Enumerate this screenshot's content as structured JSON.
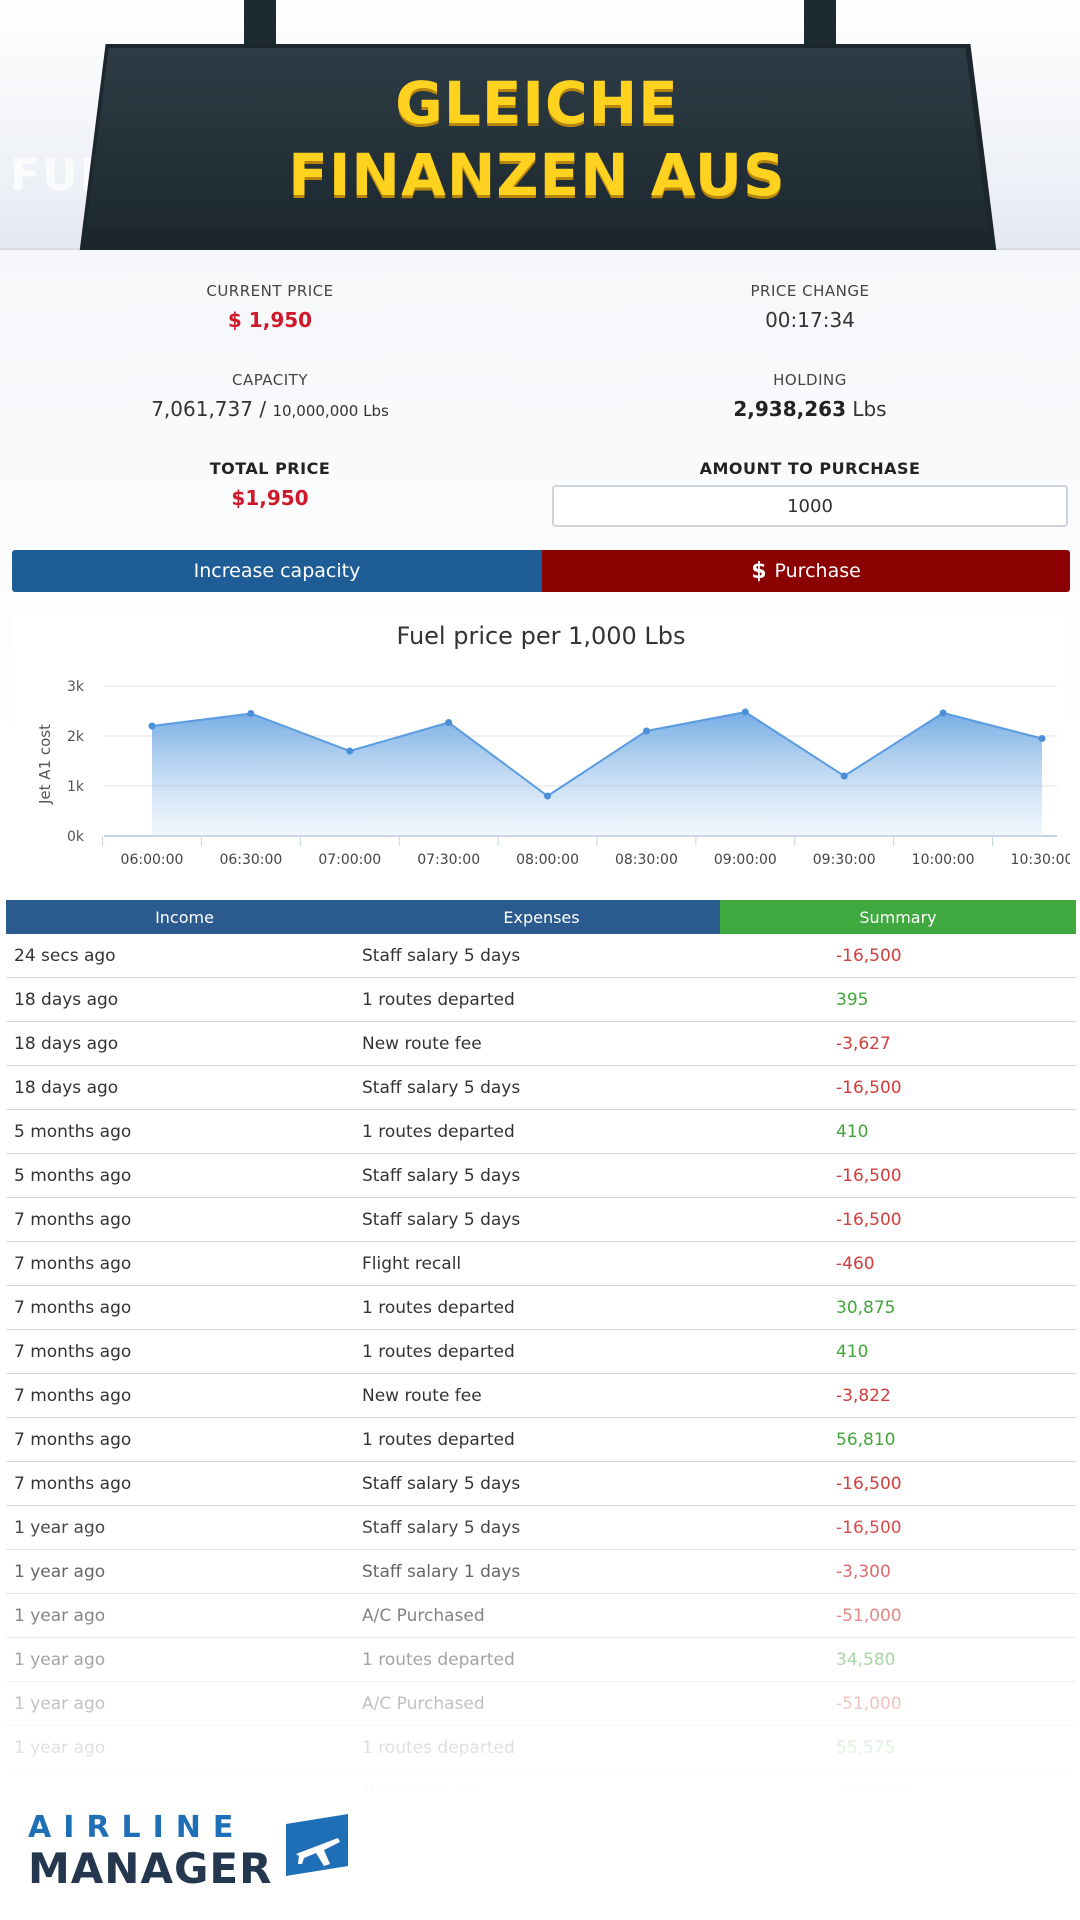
{
  "banner": {
    "line1": "GLEICHE",
    "line2": "FINANZEN AUS",
    "faded_title": "FUE"
  },
  "stats": {
    "current_price_label": "CURRENT PRICE",
    "current_price_value": "$ 1,950",
    "price_change_label": "PRICE CHANGE",
    "price_change_value": "00:17:34",
    "capacity_label": "CAPACITY",
    "capacity_value": "7,061,737 /",
    "capacity_max": "10,000,000 Lbs",
    "holding_label": "HOLDING",
    "holding_value": "2,938,263",
    "holding_unit": "Lbs",
    "total_price_label": "TOTAL PRICE",
    "total_price_value": "$1,950",
    "amount_label": "AMOUNT TO PURCHASE",
    "amount_value": "1000"
  },
  "buttons": {
    "increase": "Increase capacity",
    "purchase": "Purchase",
    "purchase_icon": "dollar-icon"
  },
  "colors": {
    "blue": "#1f5d96",
    "red": "#8b0000",
    "green": "#3fa83f",
    "accent_yellow": "#ffd21f"
  },
  "chart_data": {
    "type": "area",
    "title": "Fuel price per 1,000 Lbs",
    "xlabel": "",
    "ylabel": "Jet A1 cost",
    "categories": [
      "06:00:00",
      "06:30:00",
      "07:00:00",
      "07:30:00",
      "08:00:00",
      "08:30:00",
      "09:00:00",
      "09:30:00",
      "10:00:00",
      "10:30:00"
    ],
    "values": [
      2200,
      2450,
      1700,
      2270,
      800,
      2100,
      2480,
      1200,
      2460,
      1950
    ],
    "ylim": [
      0,
      3000
    ],
    "yticks": [
      "0k",
      "1k",
      "2k",
      "3k"
    ],
    "grid": true,
    "legend": "none"
  },
  "table": {
    "tabs": [
      "Income",
      "Expenses",
      "Summary"
    ],
    "rows": [
      {
        "time": "24 secs ago",
        "desc": "Staff salary 5 days",
        "amount": "-16,500",
        "sign": "neg"
      },
      {
        "time": "18 days ago",
        "desc": "1 routes departed",
        "amount": "395",
        "sign": "pos"
      },
      {
        "time": "18 days ago",
        "desc": "New route fee",
        "amount": "-3,627",
        "sign": "neg"
      },
      {
        "time": "18 days ago",
        "desc": "Staff salary 5 days",
        "amount": "-16,500",
        "sign": "neg"
      },
      {
        "time": "5 months ago",
        "desc": "1 routes departed",
        "amount": "410",
        "sign": "pos"
      },
      {
        "time": "5 months ago",
        "desc": "Staff salary 5 days",
        "amount": "-16,500",
        "sign": "neg"
      },
      {
        "time": "7 months ago",
        "desc": "Staff salary 5 days",
        "amount": "-16,500",
        "sign": "neg"
      },
      {
        "time": "7 months ago",
        "desc": "Flight recall",
        "amount": "-460",
        "sign": "neg"
      },
      {
        "time": "7 months ago",
        "desc": "1 routes departed",
        "amount": "30,875",
        "sign": "pos"
      },
      {
        "time": "7 months ago",
        "desc": "1 routes departed",
        "amount": "410",
        "sign": "pos"
      },
      {
        "time": "7 months ago",
        "desc": "New route fee",
        "amount": "-3,822",
        "sign": "neg"
      },
      {
        "time": "7 months ago",
        "desc": "1 routes departed",
        "amount": "56,810",
        "sign": "pos"
      },
      {
        "time": "7 months ago",
        "desc": "Staff salary 5 days",
        "amount": "-16,500",
        "sign": "neg"
      },
      {
        "time": "1 year ago",
        "desc": "Staff salary 5 days",
        "amount": "-16,500",
        "sign": "neg"
      },
      {
        "time": "1 year ago",
        "desc": "Staff salary 1 days",
        "amount": "-3,300",
        "sign": "neg"
      },
      {
        "time": "1 year ago",
        "desc": "A/C Purchased",
        "amount": "-51,000",
        "sign": "neg"
      },
      {
        "time": "1 year ago",
        "desc": "1 routes departed",
        "amount": "34,580",
        "sign": "pos"
      },
      {
        "time": "1 year ago",
        "desc": "A/C Purchased",
        "amount": "-51,000",
        "sign": "neg"
      },
      {
        "time": "1 year ago",
        "desc": "1 routes departed",
        "amount": "55,575",
        "sign": "pos"
      },
      {
        "time": "",
        "desc": "New route fee",
        "amount": "-230,866",
        "sign": "neg"
      }
    ]
  },
  "logo": {
    "line1": "AIRLINE",
    "line2": "MANAGER",
    "icon": "airplane-icon"
  }
}
